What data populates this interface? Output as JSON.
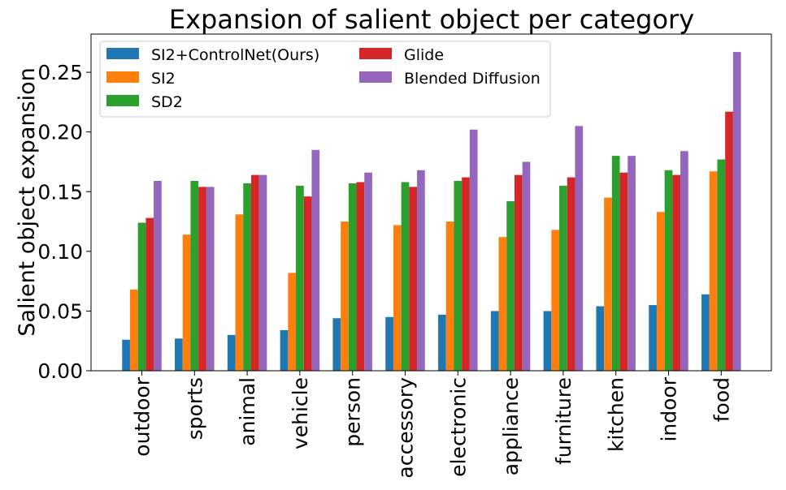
{
  "chart_data": {
    "type": "bar",
    "title": "Expansion of salient object per category",
    "xlabel": "",
    "ylabel": "Salient object expansion",
    "ylim": [
      0,
      0.282
    ],
    "yticks": [
      "0.00",
      "0.05",
      "0.10",
      "0.15",
      "0.20",
      "0.25"
    ],
    "grid": false,
    "legend_position": "top-left",
    "categories": [
      "outdoor",
      "sports",
      "animal",
      "vehicle",
      "person",
      "accessory",
      "electronic",
      "appliance",
      "furniture",
      "kitchen",
      "indoor",
      "food"
    ],
    "series": [
      {
        "name": "SI2+ControlNet(Ours)",
        "color": "#1f77b4",
        "values": [
          0.026,
          0.027,
          0.03,
          0.034,
          0.044,
          0.045,
          0.047,
          0.05,
          0.05,
          0.054,
          0.055,
          0.064
        ]
      },
      {
        "name": "SI2",
        "color": "#ff7f0e",
        "values": [
          0.068,
          0.114,
          0.131,
          0.082,
          0.125,
          0.122,
          0.125,
          0.112,
          0.118,
          0.145,
          0.133,
          0.167
        ]
      },
      {
        "name": "SD2",
        "color": "#2ca02c",
        "values": [
          0.124,
          0.159,
          0.157,
          0.155,
          0.157,
          0.158,
          0.159,
          0.142,
          0.155,
          0.18,
          0.168,
          0.177
        ]
      },
      {
        "name": "Glide",
        "color": "#d62728",
        "values": [
          0.128,
          0.154,
          0.164,
          0.146,
          0.158,
          0.154,
          0.162,
          0.164,
          0.162,
          0.166,
          0.164,
          0.217
        ]
      },
      {
        "name": "Blended Diffusion",
        "color": "#9467bd",
        "values": [
          0.159,
          0.154,
          0.164,
          0.185,
          0.166,
          0.168,
          0.202,
          0.175,
          0.205,
          0.18,
          0.184,
          0.267
        ]
      }
    ]
  }
}
